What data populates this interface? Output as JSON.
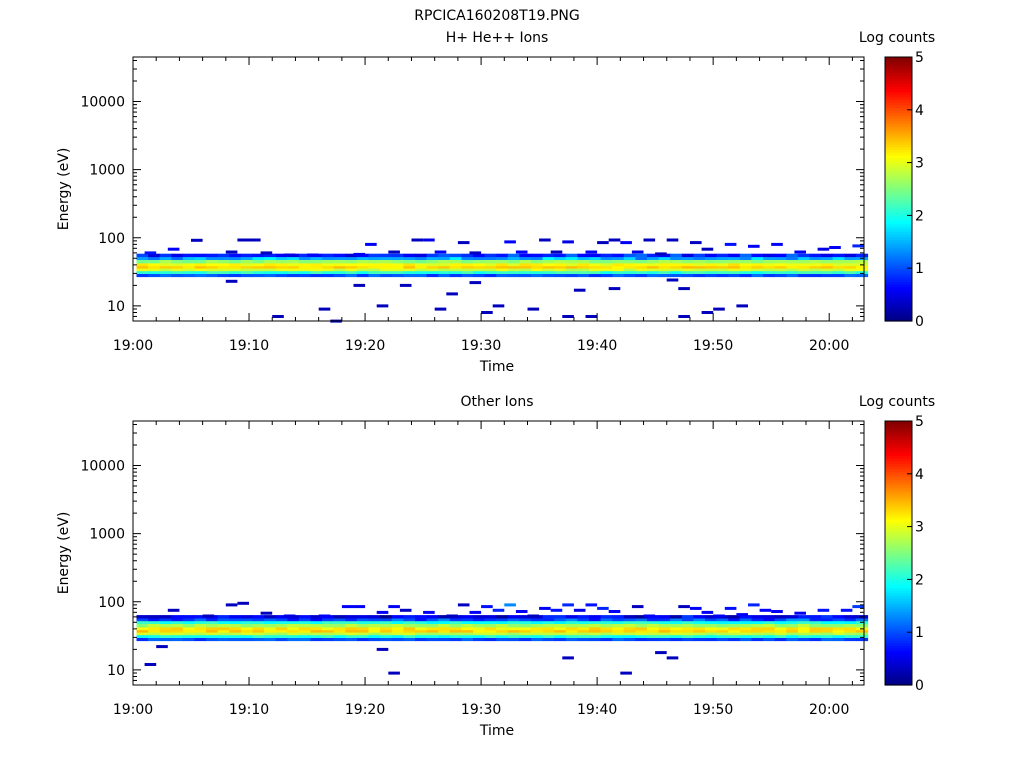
{
  "figure_title": "RPCICA160208T19.PNG",
  "chart_data": [
    {
      "type": "heatmap",
      "title": "H+ He++ Ions",
      "xlabel": "Time",
      "ylabel": "Energy (eV)",
      "x_ticks": [
        "19:00",
        "19:10",
        "19:20",
        "19:30",
        "19:40",
        "19:50",
        "20:00"
      ],
      "y_ticks": [
        "10",
        "100",
        "1000",
        "10000"
      ],
      "y_scale": "log",
      "xlim": [
        "19:00",
        "20:03"
      ],
      "ylim": [
        6,
        45000
      ],
      "colorbar": {
        "label": "Log counts",
        "ticks": [
          "0",
          "1",
          "2",
          "3",
          "4",
          "5"
        ],
        "range": [
          0,
          5
        ]
      },
      "core_band": {
        "energy_eV": [
          27,
          30,
          33,
          36,
          39,
          43,
          48,
          53
        ],
        "log_counts": [
          1.0,
          2.1,
          2.9,
          3.3,
          3.1,
          2.6,
          1.8,
          1.1
        ]
      },
      "sparse_pixels": [
        {
          "t": "19:01",
          "e": 60,
          "v": 0.7
        },
        {
          "t": "19:03",
          "e": 68,
          "v": 0.6
        },
        {
          "t": "19:05",
          "e": 92,
          "v": 0.3
        },
        {
          "t": "19:08",
          "e": 62,
          "v": 0.3
        },
        {
          "t": "19:08",
          "e": 23,
          "v": 0.3
        },
        {
          "t": "19:09",
          "e": 93,
          "v": 0.3
        },
        {
          "t": "19:10",
          "e": 93,
          "v": 0.3
        },
        {
          "t": "19:11",
          "e": 60,
          "v": 0.3
        },
        {
          "t": "19:12",
          "e": 7,
          "v": 0.3
        },
        {
          "t": "19:13",
          "e": 56,
          "v": 0.5
        },
        {
          "t": "19:15",
          "e": 56,
          "v": 0.6
        },
        {
          "t": "19:16",
          "e": 9,
          "v": 0.3
        },
        {
          "t": "19:17",
          "e": 6,
          "v": 0.3
        },
        {
          "t": "19:19",
          "e": 57,
          "v": 0.6
        },
        {
          "t": "19:19",
          "e": 20,
          "v": 0.3
        },
        {
          "t": "19:20",
          "e": 80,
          "v": 0.6
        },
        {
          "t": "19:21",
          "e": 10,
          "v": 0.3
        },
        {
          "t": "19:22",
          "e": 62,
          "v": 0.3
        },
        {
          "t": "19:23",
          "e": 20,
          "v": 0.3
        },
        {
          "t": "19:24",
          "e": 93,
          "v": 0.3
        },
        {
          "t": "19:25",
          "e": 93,
          "v": 0.5
        },
        {
          "t": "19:26",
          "e": 62,
          "v": 0.6
        },
        {
          "t": "19:26",
          "e": 9,
          "v": 0.3
        },
        {
          "t": "19:27",
          "e": 15,
          "v": 0.3
        },
        {
          "t": "19:28",
          "e": 85,
          "v": 0.3
        },
        {
          "t": "19:29",
          "e": 60,
          "v": 0.3
        },
        {
          "t": "19:29",
          "e": 22,
          "v": 0.3
        },
        {
          "t": "19:30",
          "e": 8,
          "v": 0.3
        },
        {
          "t": "19:31",
          "e": 10,
          "v": 0.3
        },
        {
          "t": "19:32",
          "e": 87,
          "v": 0.6
        },
        {
          "t": "19:33",
          "e": 62,
          "v": 0.6
        },
        {
          "t": "19:34",
          "e": 9,
          "v": 0.3
        },
        {
          "t": "19:35",
          "e": 93,
          "v": 0.3
        },
        {
          "t": "19:36",
          "e": 62,
          "v": 0.3
        },
        {
          "t": "19:37",
          "e": 87,
          "v": 0.5
        },
        {
          "t": "19:37",
          "e": 7,
          "v": 0.3
        },
        {
          "t": "19:38",
          "e": 17,
          "v": 0.3
        },
        {
          "t": "19:39",
          "e": 62,
          "v": 0.6
        },
        {
          "t": "19:39",
          "e": 7,
          "v": 0.3
        },
        {
          "t": "19:40",
          "e": 85,
          "v": 0.3
        },
        {
          "t": "19:41",
          "e": 93,
          "v": 0.3
        },
        {
          "t": "19:41",
          "e": 18,
          "v": 0.3
        },
        {
          "t": "19:42",
          "e": 85,
          "v": 0.6
        },
        {
          "t": "19:43",
          "e": 62,
          "v": 0.5
        },
        {
          "t": "19:44",
          "e": 93,
          "v": 0.3
        },
        {
          "t": "19:45",
          "e": 58,
          "v": 0.3
        },
        {
          "t": "19:46",
          "e": 93,
          "v": 0.3
        },
        {
          "t": "19:46",
          "e": 24,
          "v": 0.3
        },
        {
          "t": "19:47",
          "e": 18,
          "v": 0.3
        },
        {
          "t": "19:47",
          "e": 7,
          "v": 0.3
        },
        {
          "t": "19:48",
          "e": 85,
          "v": 0.3
        },
        {
          "t": "19:49",
          "e": 68,
          "v": 0.3
        },
        {
          "t": "19:49",
          "e": 8,
          "v": 0.3
        },
        {
          "t": "19:50",
          "e": 9,
          "v": 0.3
        },
        {
          "t": "19:51",
          "e": 80,
          "v": 0.7
        },
        {
          "t": "19:52",
          "e": 10,
          "v": 0.3
        },
        {
          "t": "19:53",
          "e": 75,
          "v": 0.6
        },
        {
          "t": "19:55",
          "e": 80,
          "v": 0.6
        },
        {
          "t": "19:57",
          "e": 62,
          "v": 0.6
        },
        {
          "t": "19:59",
          "e": 68,
          "v": 0.5
        },
        {
          "t": "20:00",
          "e": 72,
          "v": 0.6
        },
        {
          "t": "20:02",
          "e": 76,
          "v": 0.8
        }
      ]
    },
    {
      "type": "heatmap",
      "title": "Other Ions",
      "xlabel": "Time",
      "ylabel": "Energy (eV)",
      "x_ticks": [
        "19:00",
        "19:10",
        "19:20",
        "19:30",
        "19:40",
        "19:50",
        "20:00"
      ],
      "y_ticks": [
        "10",
        "100",
        "1000",
        "10000"
      ],
      "y_scale": "log",
      "xlim": [
        "19:00",
        "20:03"
      ],
      "ylim": [
        6,
        45000
      ],
      "colorbar": {
        "label": "Log counts",
        "ticks": [
          "0",
          "1",
          "2",
          "3",
          "4",
          "5"
        ],
        "range": [
          0,
          5
        ]
      },
      "core_band": {
        "energy_eV": [
          27,
          30,
          33,
          36,
          39,
          43,
          48,
          53,
          58
        ],
        "log_counts": [
          1.0,
          2.0,
          2.8,
          3.3,
          3.2,
          2.7,
          2.0,
          1.3,
          0.8
        ]
      },
      "sparse_pixels": [
        {
          "t": "19:01",
          "e": 12,
          "v": 0.3
        },
        {
          "t": "19:02",
          "e": 22,
          "v": 0.3
        },
        {
          "t": "19:03",
          "e": 75,
          "v": 0.3
        },
        {
          "t": "19:06",
          "e": 62,
          "v": 0.3
        },
        {
          "t": "19:08",
          "e": 90,
          "v": 0.3
        },
        {
          "t": "19:09",
          "e": 95,
          "v": 0.3
        },
        {
          "t": "19:11",
          "e": 68,
          "v": 0.3
        },
        {
          "t": "19:13",
          "e": 62,
          "v": 0.5
        },
        {
          "t": "19:16",
          "e": 62,
          "v": 0.6
        },
        {
          "t": "19:18",
          "e": 85,
          "v": 0.6
        },
        {
          "t": "19:19",
          "e": 85,
          "v": 0.6
        },
        {
          "t": "19:21",
          "e": 70,
          "v": 0.6
        },
        {
          "t": "19:21",
          "e": 20,
          "v": 0.3
        },
        {
          "t": "19:22",
          "e": 85,
          "v": 0.6
        },
        {
          "t": "19:22",
          "e": 9,
          "v": 0.3
        },
        {
          "t": "19:23",
          "e": 75,
          "v": 0.3
        },
        {
          "t": "19:25",
          "e": 70,
          "v": 0.6
        },
        {
          "t": "19:27",
          "e": 62,
          "v": 0.3
        },
        {
          "t": "19:28",
          "e": 90,
          "v": 0.3
        },
        {
          "t": "19:29",
          "e": 70,
          "v": 0.6
        },
        {
          "t": "19:30",
          "e": 85,
          "v": 0.7
        },
        {
          "t": "19:31",
          "e": 75,
          "v": 0.8
        },
        {
          "t": "19:32",
          "e": 90,
          "v": 1.3
        },
        {
          "t": "19:33",
          "e": 72,
          "v": 0.6
        },
        {
          "t": "19:34",
          "e": 62,
          "v": 0.3
        },
        {
          "t": "19:35",
          "e": 80,
          "v": 0.6
        },
        {
          "t": "19:36",
          "e": 75,
          "v": 0.7
        },
        {
          "t": "19:37",
          "e": 90,
          "v": 0.8
        },
        {
          "t": "19:37",
          "e": 15,
          "v": 0.3
        },
        {
          "t": "19:38",
          "e": 75,
          "v": 0.5
        },
        {
          "t": "19:39",
          "e": 90,
          "v": 0.7
        },
        {
          "t": "19:40",
          "e": 80,
          "v": 0.8
        },
        {
          "t": "19:41",
          "e": 72,
          "v": 0.6
        },
        {
          "t": "19:42",
          "e": 9,
          "v": 0.3
        },
        {
          "t": "19:43",
          "e": 85,
          "v": 0.3
        },
        {
          "t": "19:44",
          "e": 62,
          "v": 0.6
        },
        {
          "t": "19:45",
          "e": 18,
          "v": 0.3
        },
        {
          "t": "19:46",
          "e": 15,
          "v": 0.3
        },
        {
          "t": "19:47",
          "e": 85,
          "v": 0.3
        },
        {
          "t": "19:48",
          "e": 80,
          "v": 0.6
        },
        {
          "t": "19:49",
          "e": 70,
          "v": 0.6
        },
        {
          "t": "19:50",
          "e": 62,
          "v": 0.6
        },
        {
          "t": "19:51",
          "e": 80,
          "v": 0.7
        },
        {
          "t": "19:52",
          "e": 65,
          "v": 0.6
        },
        {
          "t": "19:53",
          "e": 90,
          "v": 0.8
        },
        {
          "t": "19:54",
          "e": 75,
          "v": 0.6
        },
        {
          "t": "19:55",
          "e": 72,
          "v": 0.6
        },
        {
          "t": "19:57",
          "e": 68,
          "v": 0.6
        },
        {
          "t": "19:59",
          "e": 75,
          "v": 0.7
        },
        {
          "t": "20:01",
          "e": 75,
          "v": 0.7
        },
        {
          "t": "20:02",
          "e": 85,
          "v": 0.9
        }
      ]
    }
  ]
}
